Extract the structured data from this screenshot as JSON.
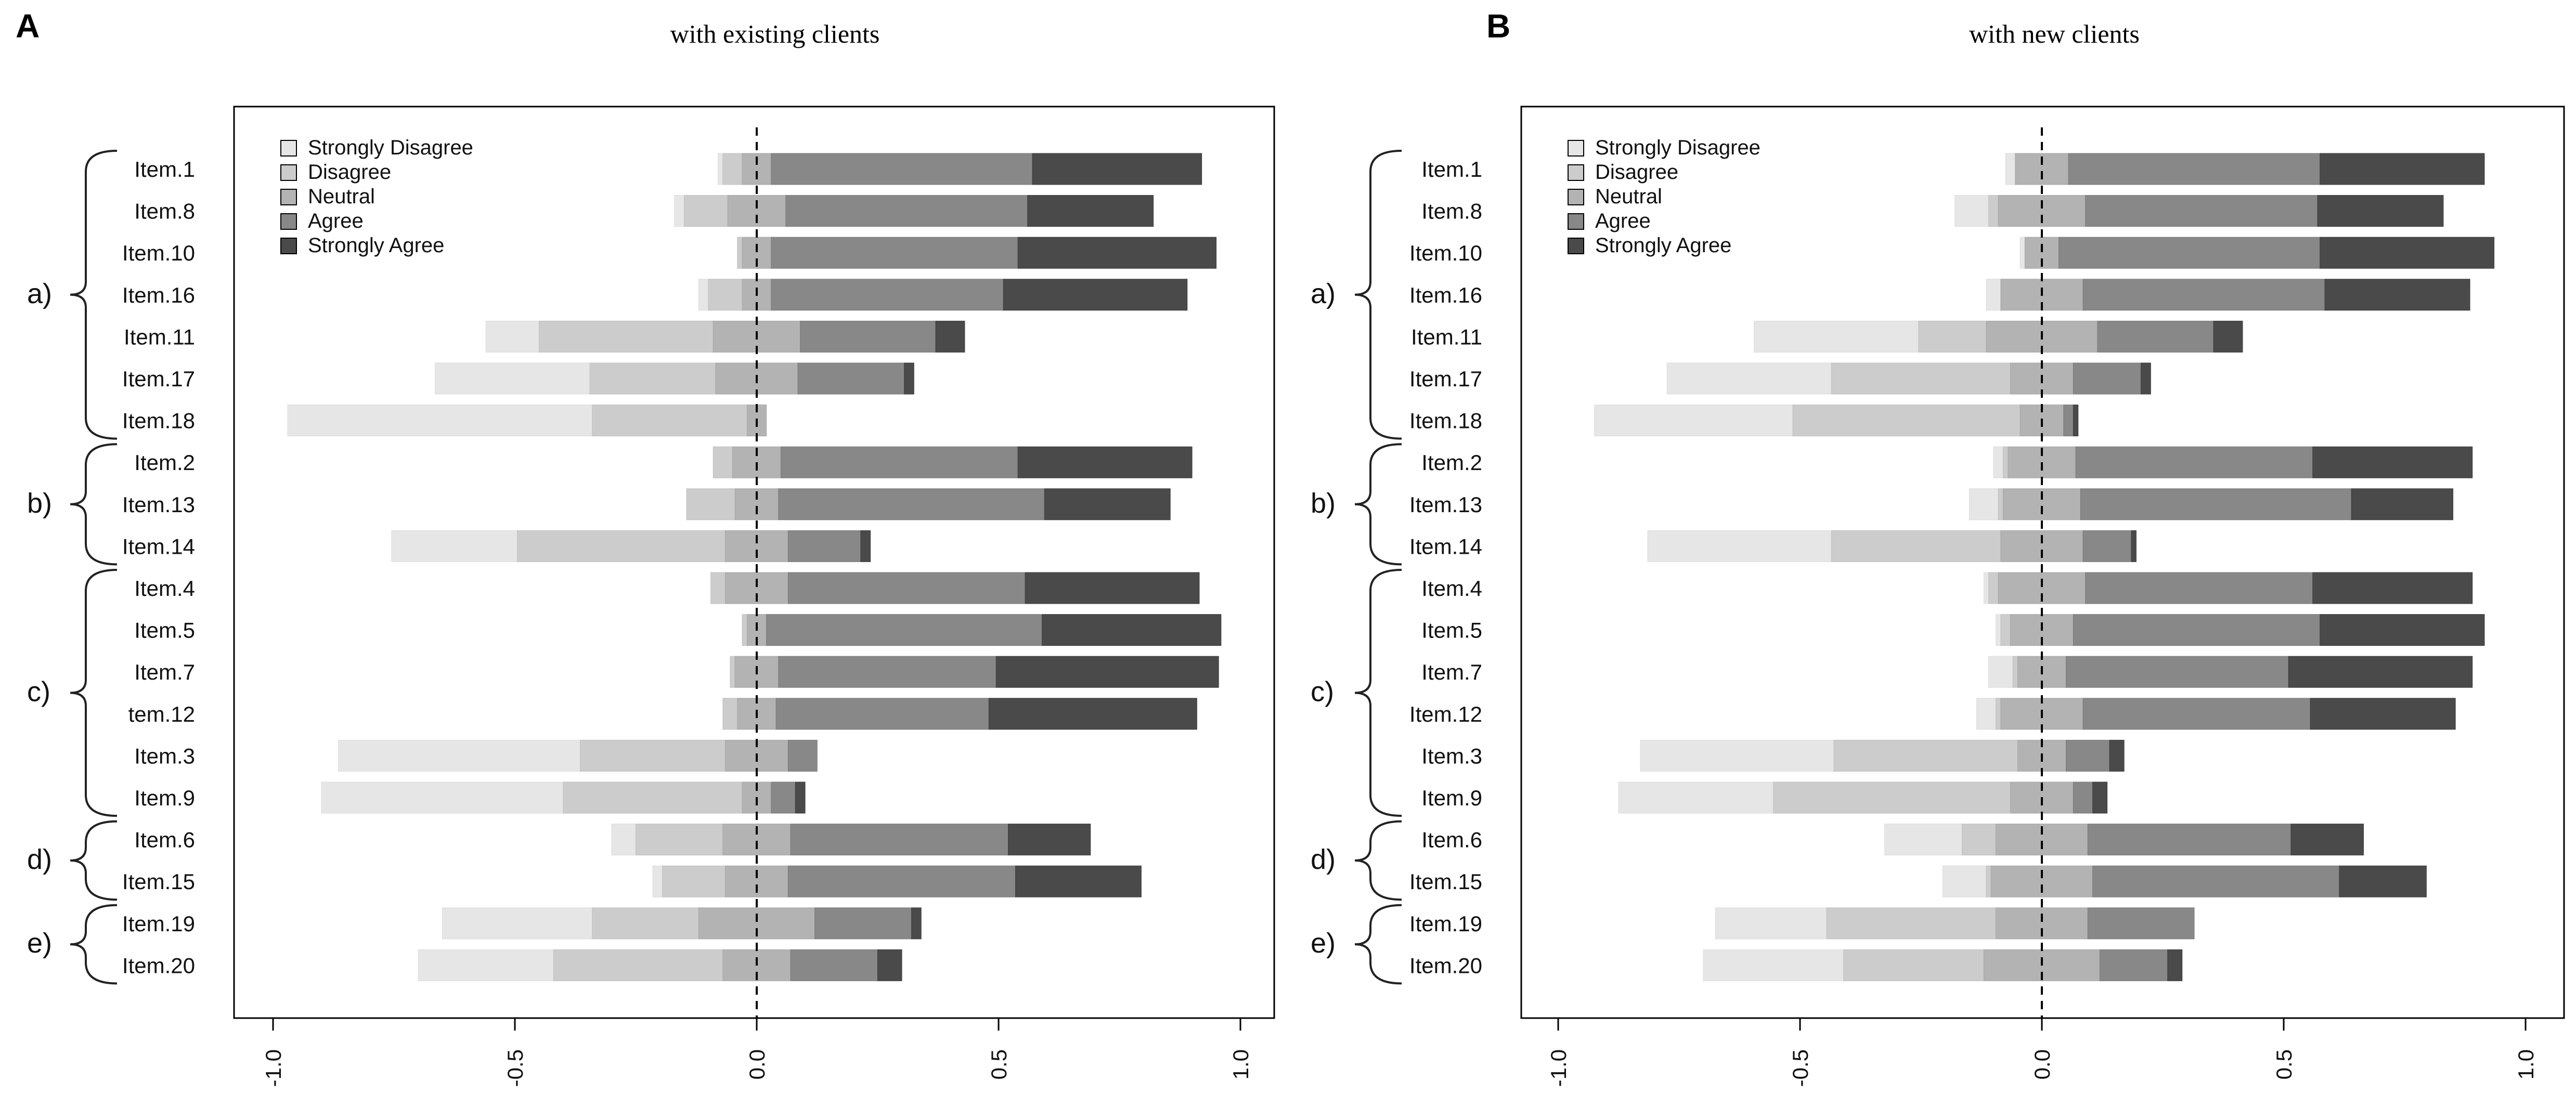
{
  "figure": {
    "panels": [
      "A",
      "B"
    ],
    "legend": [
      "Strongly Disagree",
      "Disagree",
      "Neutral",
      "Agree",
      "Strongly Agree"
    ]
  },
  "colors": {
    "strongly_disagree": "#e6e6e6",
    "disagree": "#cccccc",
    "neutral": "#b3b3b3",
    "agree": "#888888",
    "strongly_agree": "#4a4a4a",
    "frame": "#000000"
  },
  "chart_data": [
    {
      "type": "bar",
      "panel_label": "A",
      "title": "with existing clients",
      "orientation": "horizontal-diverging",
      "xlim": [
        -1.0,
        1.0
      ],
      "xticks": [
        -1.0,
        -0.5,
        0.0,
        0.5,
        1.0
      ],
      "xtick_labels": [
        "-1.0",
        "-0.5",
        "0.0",
        "0.5",
        "1.0"
      ],
      "xlabel": "",
      "ylabel": "",
      "legend_position": "top-left",
      "categories": [
        "Item.1",
        "Item.8",
        "Item.10",
        "Item.16",
        "Item.11",
        "Item.17",
        "Item.18",
        "Item.2",
        "Item.13",
        "Item.14",
        "Item.4",
        "Item.5",
        "Item.7",
        "tem.12",
        "Item.3",
        "Item.9",
        "Item.6",
        "Item.15",
        "Item.19",
        "Item.20"
      ],
      "groups": [
        {
          "label": "a)",
          "items": 7
        },
        {
          "label": "b)",
          "items": 3
        },
        {
          "label": "c)",
          "items": 6
        },
        {
          "label": "d)",
          "items": 2
        },
        {
          "label": "e)",
          "items": 2
        }
      ],
      "series": [
        {
          "name": "Strongly Disagree",
          "values": [
            0.01,
            0.02,
            0.0,
            0.02,
            0.11,
            0.32,
            0.63,
            0.0,
            0.0,
            0.26,
            0.0,
            0.0,
            0.0,
            0.0,
            0.5,
            0.5,
            0.05,
            0.02,
            0.31,
            0.28
          ]
        },
        {
          "name": "Disagree",
          "values": [
            0.04,
            0.09,
            0.01,
            0.07,
            0.36,
            0.26,
            0.32,
            0.04,
            0.1,
            0.43,
            0.03,
            0.01,
            0.01,
            0.03,
            0.3,
            0.37,
            0.18,
            0.13,
            0.22,
            0.35
          ]
        },
        {
          "name": "Neutral",
          "values": [
            0.06,
            0.12,
            0.06,
            0.06,
            0.18,
            0.17,
            0.04,
            0.1,
            0.09,
            0.13,
            0.13,
            0.04,
            0.09,
            0.08,
            0.13,
            0.06,
            0.14,
            0.13,
            0.24,
            0.14
          ]
        },
        {
          "name": "Agree",
          "values": [
            0.54,
            0.5,
            0.51,
            0.48,
            0.28,
            0.22,
            0.0,
            0.49,
            0.55,
            0.15,
            0.49,
            0.57,
            0.45,
            0.44,
            0.06,
            0.05,
            0.45,
            0.47,
            0.2,
            0.18
          ]
        },
        {
          "name": "Strongly Agree",
          "values": [
            0.35,
            0.26,
            0.41,
            0.38,
            0.06,
            0.02,
            0.0,
            0.36,
            0.26,
            0.02,
            0.36,
            0.37,
            0.46,
            0.43,
            0.0,
            0.02,
            0.17,
            0.26,
            0.02,
            0.05
          ]
        }
      ]
    },
    {
      "type": "bar",
      "panel_label": "B",
      "title": "with new clients",
      "orientation": "horizontal-diverging",
      "xlim": [
        -1.0,
        1.0
      ],
      "xticks": [
        -1.0,
        -0.5,
        0.0,
        0.5,
        1.0
      ],
      "xtick_labels": [
        "-1.0",
        "-0.5",
        "0.0",
        "0.5",
        "1.0"
      ],
      "xlabel": "",
      "ylabel": "",
      "legend_position": "top-left",
      "categories": [
        "Item.1",
        "Item.8",
        "Item.10",
        "Item.16",
        "Item.11",
        "Item.17",
        "Item.18",
        "Item.2",
        "Item.13",
        "Item.14",
        "Item.4",
        "Item.5",
        "Item.7",
        "Item.12",
        "Item.3",
        "Item.9",
        "Item.6",
        "Item.15",
        "Item.19",
        "Item.20"
      ],
      "groups": [
        {
          "label": "a)",
          "items": 7
        },
        {
          "label": "b)",
          "items": 3
        },
        {
          "label": "c)",
          "items": 6
        },
        {
          "label": "d)",
          "items": 2
        },
        {
          "label": "e)",
          "items": 2
        }
      ],
      "series": [
        {
          "name": "Strongly Disagree",
          "values": [
            0.02,
            0.07,
            0.01,
            0.03,
            0.34,
            0.34,
            0.41,
            0.02,
            0.06,
            0.38,
            0.01,
            0.01,
            0.05,
            0.04,
            0.4,
            0.32,
            0.16,
            0.09,
            0.23,
            0.29
          ]
        },
        {
          "name": "Disagree",
          "values": [
            0.0,
            0.02,
            0.0,
            0.0,
            0.14,
            0.37,
            0.47,
            0.01,
            0.01,
            0.35,
            0.02,
            0.02,
            0.01,
            0.01,
            0.38,
            0.49,
            0.07,
            0.01,
            0.35,
            0.29
          ]
        },
        {
          "name": "Neutral",
          "values": [
            0.11,
            0.18,
            0.07,
            0.17,
            0.23,
            0.13,
            0.09,
            0.14,
            0.16,
            0.17,
            0.18,
            0.13,
            0.1,
            0.17,
            0.1,
            0.13,
            0.19,
            0.21,
            0.19,
            0.24
          ]
        },
        {
          "name": "Agree",
          "values": [
            0.52,
            0.48,
            0.54,
            0.5,
            0.24,
            0.14,
            0.02,
            0.49,
            0.56,
            0.1,
            0.47,
            0.51,
            0.46,
            0.47,
            0.09,
            0.04,
            0.42,
            0.51,
            0.22,
            0.14
          ]
        },
        {
          "name": "Strongly Agree",
          "values": [
            0.34,
            0.26,
            0.36,
            0.3,
            0.06,
            0.02,
            0.01,
            0.33,
            0.21,
            0.01,
            0.33,
            0.34,
            0.38,
            0.3,
            0.03,
            0.03,
            0.15,
            0.18,
            0.0,
            0.03
          ]
        }
      ]
    }
  ]
}
